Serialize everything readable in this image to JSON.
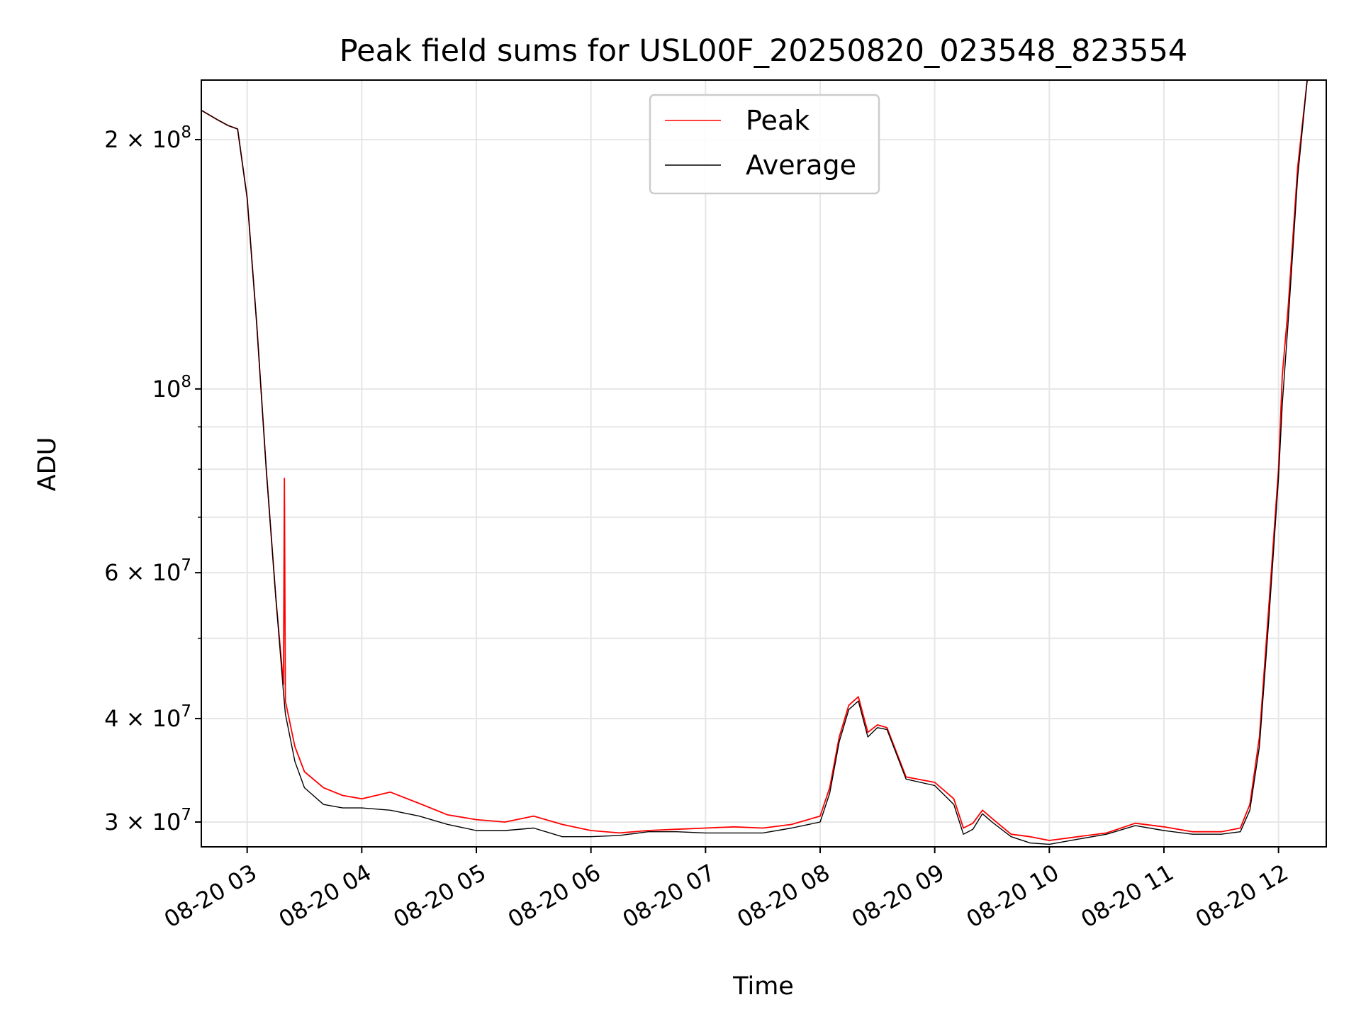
{
  "chart_data": {
    "type": "line",
    "title": "Peak field sums for USL00F_20250820_023548_823554",
    "xlabel": "Time",
    "ylabel": "ADU",
    "x_scale": "time",
    "y_scale": "log",
    "xlim": [
      "2025-08-20 02:36",
      "2025-08-20 12:25"
    ],
    "ylim": [
      28000000,
      236000000
    ],
    "grid": true,
    "legend_position": "upper center",
    "x_ticks": [
      "08-20 03",
      "08-20 04",
      "08-20 05",
      "08-20 06",
      "08-20 07",
      "08-20 08",
      "08-20 09",
      "08-20 10",
      "08-20 11",
      "08-20 12"
    ],
    "y_ticks": [
      {
        "value": 30000000,
        "base": "3",
        "exp": "7"
      },
      {
        "value": 40000000,
        "base": "4",
        "exp": "7"
      },
      {
        "value": 60000000,
        "base": "6",
        "exp": "7"
      },
      {
        "value": 100000000,
        "base": "",
        "exp": "8"
      },
      {
        "value": 200000000,
        "base": "2",
        "exp": "8"
      }
    ],
    "series": [
      {
        "name": "Peak",
        "color": "#ff0000",
        "points": [
          [
            "02:36",
            217000000
          ],
          [
            "02:45",
            211000000
          ],
          [
            "02:50",
            208000000
          ],
          [
            "02:55",
            206000000
          ],
          [
            "03:00",
            170000000
          ],
          [
            "03:05",
            120000000
          ],
          [
            "03:10",
            80000000
          ],
          [
            "03:15",
            56000000
          ],
          [
            "03:19",
            44000000
          ],
          [
            "03:19:30",
            78000000
          ],
          [
            "03:20",
            42000000
          ],
          [
            "03:25",
            37000000
          ],
          [
            "03:30",
            34500000
          ],
          [
            "03:40",
            33000000
          ],
          [
            "03:50",
            32300000
          ],
          [
            "04:00",
            32000000
          ],
          [
            "04:15",
            32600000
          ],
          [
            "04:30",
            31600000
          ],
          [
            "04:45",
            30600000
          ],
          [
            "05:00",
            30200000
          ],
          [
            "05:15",
            30000000
          ],
          [
            "05:30",
            30500000
          ],
          [
            "05:45",
            29800000
          ],
          [
            "06:00",
            29300000
          ],
          [
            "06:15",
            29100000
          ],
          [
            "06:30",
            29300000
          ],
          [
            "06:45",
            29400000
          ],
          [
            "07:00",
            29500000
          ],
          [
            "07:15",
            29600000
          ],
          [
            "07:30",
            29500000
          ],
          [
            "07:45",
            29800000
          ],
          [
            "08:00",
            30500000
          ],
          [
            "08:05",
            33000000
          ],
          [
            "08:10",
            38000000
          ],
          [
            "08:15",
            41500000
          ],
          [
            "08:20",
            42500000
          ],
          [
            "08:25",
            38500000
          ],
          [
            "08:30",
            39300000
          ],
          [
            "08:35",
            39000000
          ],
          [
            "08:45",
            34000000
          ],
          [
            "09:00",
            33500000
          ],
          [
            "09:10",
            32000000
          ],
          [
            "09:15",
            29500000
          ],
          [
            "09:20",
            29900000
          ],
          [
            "09:25",
            31000000
          ],
          [
            "09:30",
            30300000
          ],
          [
            "09:40",
            29000000
          ],
          [
            "09:50",
            28800000
          ],
          [
            "10:00",
            28500000
          ],
          [
            "10:15",
            28800000
          ],
          [
            "10:30",
            29100000
          ],
          [
            "10:45",
            29900000
          ],
          [
            "11:00",
            29600000
          ],
          [
            "11:15",
            29200000
          ],
          [
            "11:30",
            29200000
          ],
          [
            "11:40",
            29500000
          ],
          [
            "11:45",
            31500000
          ],
          [
            "11:50",
            38000000
          ],
          [
            "11:55",
            55000000
          ],
          [
            "12:00",
            80000000
          ],
          [
            "12:02",
            104000000
          ],
          [
            "12:05",
            125000000
          ],
          [
            "12:10",
            185000000
          ],
          [
            "12:15",
            236000000
          ]
        ]
      },
      {
        "name": "Average",
        "color": "#000000",
        "points": [
          [
            "02:36",
            217000000
          ],
          [
            "02:45",
            211000000
          ],
          [
            "02:50",
            208000000
          ],
          [
            "02:55",
            206000000
          ],
          [
            "03:00",
            170000000
          ],
          [
            "03:05",
            120000000
          ],
          [
            "03:10",
            80000000
          ],
          [
            "03:15",
            56000000
          ],
          [
            "03:19",
            43000000
          ],
          [
            "03:20",
            40500000
          ],
          [
            "03:25",
            35500000
          ],
          [
            "03:30",
            33000000
          ],
          [
            "03:40",
            31500000
          ],
          [
            "03:50",
            31200000
          ],
          [
            "04:00",
            31200000
          ],
          [
            "04:15",
            31000000
          ],
          [
            "04:30",
            30500000
          ],
          [
            "04:45",
            29800000
          ],
          [
            "05:00",
            29300000
          ],
          [
            "05:15",
            29300000
          ],
          [
            "05:30",
            29500000
          ],
          [
            "05:45",
            28800000
          ],
          [
            "06:00",
            28800000
          ],
          [
            "06:15",
            28900000
          ],
          [
            "06:30",
            29200000
          ],
          [
            "06:45",
            29200000
          ],
          [
            "07:00",
            29100000
          ],
          [
            "07:15",
            29100000
          ],
          [
            "07:30",
            29100000
          ],
          [
            "07:45",
            29500000
          ],
          [
            "08:00",
            30000000
          ],
          [
            "08:05",
            32500000
          ],
          [
            "08:10",
            37500000
          ],
          [
            "08:15",
            41000000
          ],
          [
            "08:20",
            42000000
          ],
          [
            "08:25",
            38000000
          ],
          [
            "08:30",
            39000000
          ],
          [
            "08:35",
            38800000
          ],
          [
            "08:45",
            33800000
          ],
          [
            "09:00",
            33200000
          ],
          [
            "09:10",
            31500000
          ],
          [
            "09:15",
            29000000
          ],
          [
            "09:20",
            29400000
          ],
          [
            "09:25",
            30700000
          ],
          [
            "09:30",
            30000000
          ],
          [
            "09:40",
            28800000
          ],
          [
            "09:50",
            28300000
          ],
          [
            "10:00",
            28200000
          ],
          [
            "10:15",
            28600000
          ],
          [
            "10:30",
            29000000
          ],
          [
            "10:45",
            29700000
          ],
          [
            "11:00",
            29300000
          ],
          [
            "11:15",
            29000000
          ],
          [
            "11:30",
            29000000
          ],
          [
            "11:40",
            29200000
          ],
          [
            "11:45",
            31000000
          ],
          [
            "11:50",
            37000000
          ],
          [
            "11:55",
            53000000
          ],
          [
            "12:00",
            78000000
          ],
          [
            "12:02",
            96000000
          ],
          [
            "12:05",
            120000000
          ],
          [
            "12:10",
            180000000
          ],
          [
            "12:15",
            236000000
          ]
        ]
      }
    ]
  }
}
